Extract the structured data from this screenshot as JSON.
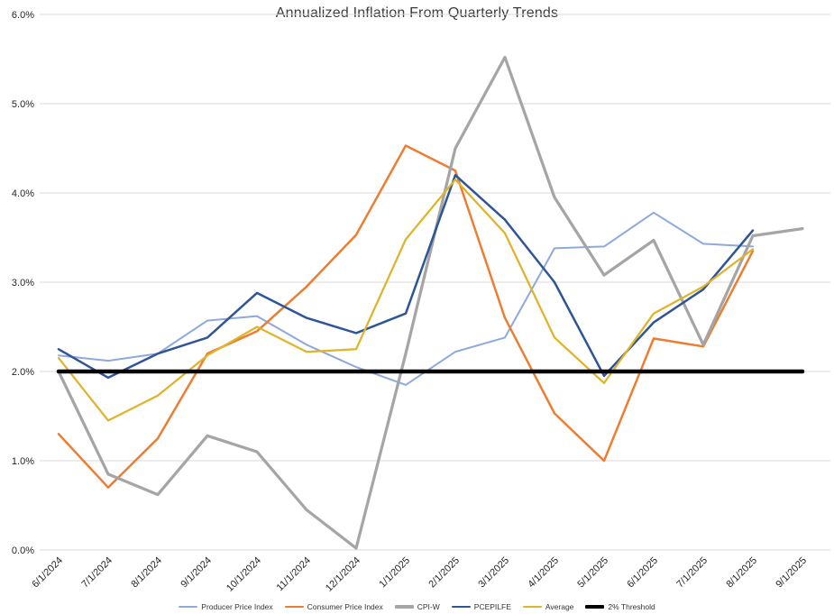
{
  "chart_data": {
    "type": "line",
    "title": "Annualized Inflation From Quarterly Trends",
    "xlabel": "",
    "ylabel": "",
    "ylim": [
      0,
      6
    ],
    "yticks": [
      0,
      1,
      2,
      3,
      4,
      5,
      6
    ],
    "ytick_labels": [
      "0.0%",
      "1.0%",
      "2.0%",
      "3.0%",
      "4.0%",
      "5.0%",
      "6.0%"
    ],
    "grid": "horizontal",
    "gridline_color": "#d9d9d9",
    "axis_label_color": "#262626",
    "legend_position": "bottom",
    "categories": [
      "6/1/2024",
      "7/1/2024",
      "8/1/2024",
      "9/1/2024",
      "10/1/2024",
      "11/1/2024",
      "12/1/2024",
      "1/1/2025",
      "2/1/2025",
      "3/1/2025",
      "4/1/2025",
      "5/1/2025",
      "6/1/2025",
      "7/1/2025",
      "8/1/2025",
      "9/1/2025"
    ],
    "series": [
      {
        "name": "Producer Price Index",
        "color": "#8EA9DB",
        "width": 2,
        "values": [
          2.18,
          2.12,
          2.2,
          2.57,
          2.62,
          2.3,
          2.05,
          1.85,
          2.22,
          2.38,
          3.38,
          3.4,
          3.78,
          3.43,
          3.4,
          null
        ]
      },
      {
        "name": "Consumer Price Index",
        "color": "#ED7D31",
        "width": 2.5,
        "values": [
          1.3,
          0.7,
          1.25,
          2.2,
          2.45,
          2.95,
          3.53,
          4.53,
          4.25,
          2.6,
          1.53,
          1.0,
          2.37,
          2.28,
          3.35,
          null
        ]
      },
      {
        "name": "CPI-W",
        "color": "#A5A5A5",
        "width": 3.25,
        "values": [
          2.0,
          0.85,
          0.62,
          1.28,
          1.1,
          0.45,
          0.02,
          2.2,
          4.5,
          5.52,
          3.95,
          3.08,
          3.47,
          2.3,
          3.52,
          3.6
        ]
      },
      {
        "name": "PCEPILFE",
        "color": "#2F5597",
        "width": 2.5,
        "values": [
          2.25,
          1.93,
          2.2,
          2.38,
          2.88,
          2.6,
          2.43,
          2.65,
          4.2,
          3.7,
          3.0,
          1.95,
          2.55,
          2.92,
          3.58,
          null
        ]
      },
      {
        "name": "Average",
        "color": "#DFB32A",
        "width": 2.25,
        "values": [
          2.15,
          1.45,
          1.73,
          2.18,
          2.5,
          2.22,
          2.25,
          3.48,
          4.15,
          3.55,
          2.38,
          1.87,
          2.65,
          2.95,
          3.37,
          null
        ]
      },
      {
        "name": "2% Threshold",
        "color": "#000000",
        "width": 4.5,
        "values": [
          2.0,
          2.0,
          2.0,
          2.0,
          2.0,
          2.0,
          2.0,
          2.0,
          2.0,
          2.0,
          2.0,
          2.0,
          2.0,
          2.0,
          2.0,
          2.0
        ]
      }
    ]
  }
}
